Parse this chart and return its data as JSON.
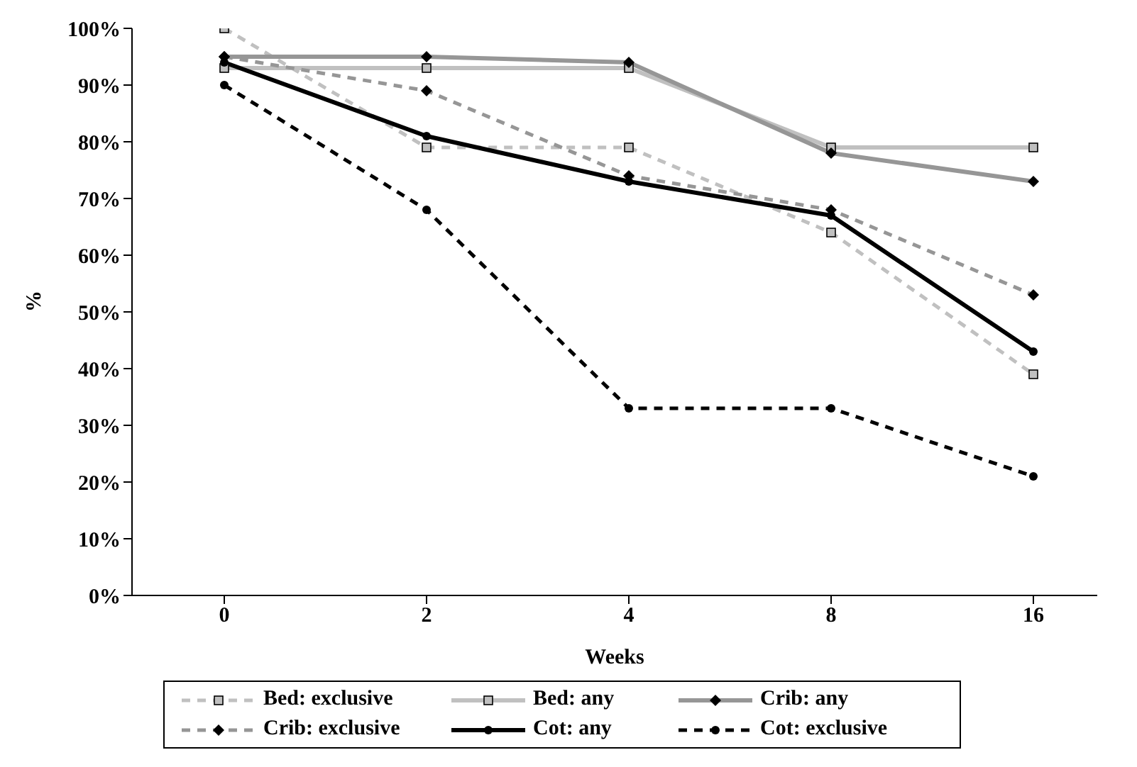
{
  "chart_data": {
    "type": "line",
    "xlabel": "Weeks",
    "ylabel": "%",
    "categories": [
      "0",
      "2",
      "4",
      "8",
      "16"
    ],
    "ylim": [
      0,
      100
    ],
    "yticks": [
      {
        "value": 0,
        "label": "0%"
      },
      {
        "value": 10,
        "label": "10%"
      },
      {
        "value": 20,
        "label": "20%"
      },
      {
        "value": 30,
        "label": "30%"
      },
      {
        "value": 40,
        "label": "40%"
      },
      {
        "value": 50,
        "label": "50%"
      },
      {
        "value": 60,
        "label": "60%"
      },
      {
        "value": 70,
        "label": "70%"
      },
      {
        "value": 80,
        "label": "80%"
      },
      {
        "value": 90,
        "label": "90%"
      },
      {
        "value": 100,
        "label": "100%"
      }
    ],
    "grid": false,
    "legend": "bottom",
    "series": [
      {
        "name": "Bed: exclusive",
        "color": "#c0c0c0",
        "line_style": "dashed",
        "marker": "square",
        "values": [
          100,
          79,
          79,
          64,
          39
        ]
      },
      {
        "name": "Bed: any",
        "color": "#c0c0c0",
        "line_style": "solid",
        "marker": "square",
        "values": [
          93,
          93,
          93,
          79,
          79
        ]
      },
      {
        "name": "Crib: any",
        "color": "#969696",
        "line_style": "solid",
        "marker": "diamond",
        "values": [
          95,
          95,
          94,
          78,
          73
        ]
      },
      {
        "name": "Crib: exclusive",
        "color": "#969696",
        "line_style": "dashed",
        "marker": "diamond",
        "values": [
          95,
          89,
          74,
          68,
          53
        ]
      },
      {
        "name": "Cot: any",
        "color": "#000000",
        "line_style": "solid",
        "marker": "circle",
        "values": [
          94,
          81,
          73,
          67,
          43
        ]
      },
      {
        "name": "Cot: exclusive",
        "color": "#000000",
        "line_style": "dashed",
        "marker": "circle",
        "values": [
          90,
          68,
          33,
          33,
          21
        ]
      }
    ]
  }
}
